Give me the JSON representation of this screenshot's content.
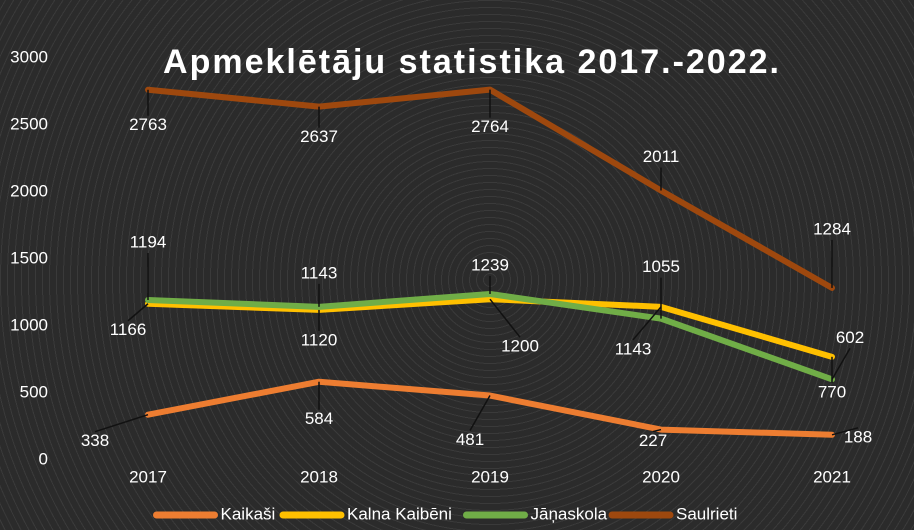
{
  "chart_data": {
    "type": "line",
    "title": "Apmeklētāju statistika 2017.-2022.",
    "categories": [
      "2017",
      "2018",
      "2019",
      "2020",
      "2021"
    ],
    "series": [
      {
        "name": "Kaikaši",
        "color": "#ed7d31",
        "values": [
          338,
          584,
          481,
          227,
          188
        ]
      },
      {
        "name": "Kalna Kaibēni",
        "color": "#ffc000",
        "values": [
          1166,
          1120,
          1200,
          1143,
          770
        ]
      },
      {
        "name": "Jāņaskola",
        "color": "#70ad47",
        "values": [
          1194,
          1143,
          1239,
          1055,
          602
        ]
      },
      {
        "name": "Saulrieti",
        "color": "#9e480e",
        "values": [
          2763,
          2637,
          2764,
          2011,
          1284
        ]
      }
    ],
    "ylim": [
      0,
      3000
    ],
    "yticks": [
      0,
      500,
      1000,
      1500,
      2000,
      2500,
      3000
    ],
    "grid": false,
    "legend": "bottom"
  }
}
